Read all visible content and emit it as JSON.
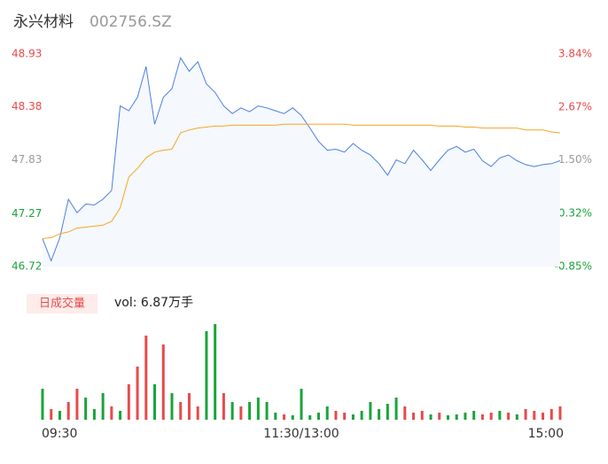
{
  "chart_data": [
    {
      "type": "line",
      "title": "永兴材料",
      "subtitle": "002756.SZ",
      "ylim": [
        46.72,
        48.93
      ],
      "yticks": [
        48.93,
        48.38,
        47.83,
        47.27,
        46.72
      ],
      "y2lim": [
        -0.85,
        3.84
      ],
      "y2ticks": [
        {
          "value": 3.84,
          "label": "3.84%"
        },
        {
          "value": 2.67,
          "label": "2.67%"
        },
        {
          "value": 1.5,
          "label": "1.50%"
        },
        {
          "value": 0.32,
          "label": "0.32%"
        },
        {
          "value": -0.85,
          "label": "-0.85%"
        }
      ],
      "series": [
        {
          "color": "#4a7fe0",
          "values": [
            47.01,
            46.78,
            47.02,
            47.42,
            47.28,
            47.37,
            47.36,
            47.42,
            47.51,
            48.39,
            48.34,
            48.48,
            48.8,
            48.2,
            48.48,
            48.57,
            48.89,
            48.75,
            48.85,
            48.62,
            48.53,
            48.39,
            48.31,
            48.37,
            48.33,
            48.39,
            48.37,
            48.34,
            48.31,
            48.37,
            48.29,
            48.16,
            48.02,
            47.93,
            47.94,
            47.91,
            48.0,
            47.93,
            47.88,
            47.79,
            47.67,
            47.83,
            47.79,
            47.93,
            47.83,
            47.72,
            47.83,
            47.93,
            47.97,
            47.91,
            47.94,
            47.82,
            47.76,
            47.85,
            47.88,
            47.82,
            47.78,
            47.76,
            47.78,
            47.79,
            47.82
          ]
        },
        {
          "color": "#f5a623",
          "values": [
            47.01,
            47.02,
            47.06,
            47.08,
            47.12,
            47.13,
            47.14,
            47.15,
            47.19,
            47.33,
            47.65,
            47.74,
            47.85,
            47.91,
            47.93,
            47.94,
            48.11,
            48.14,
            48.16,
            48.17,
            48.18,
            48.18,
            48.19,
            48.19,
            48.19,
            48.19,
            48.19,
            48.19,
            48.2,
            48.2,
            48.2,
            48.2,
            48.2,
            48.2,
            48.2,
            48.2,
            48.19,
            48.19,
            48.19,
            48.19,
            48.19,
            48.19,
            48.19,
            48.19,
            48.19,
            48.19,
            48.18,
            48.18,
            48.18,
            48.17,
            48.17,
            48.16,
            48.16,
            48.16,
            48.16,
            48.16,
            48.14,
            48.14,
            48.14,
            48.12,
            48.11
          ]
        }
      ]
    },
    {
      "type": "bar",
      "legend_label": "日成交量",
      "annotation": "vol: 6.87万手",
      "categories": [
        "09:30",
        null,
        null,
        null,
        null,
        null,
        null,
        null,
        null,
        null,
        null,
        null,
        null,
        null,
        null,
        null,
        null,
        null,
        null,
        null,
        null,
        null,
        null,
        null,
        null,
        null,
        null,
        null,
        null,
        null,
        "11:30/13:00",
        null,
        null,
        null,
        null,
        null,
        null,
        null,
        null,
        null,
        null,
        null,
        null,
        null,
        null,
        null,
        null,
        null,
        null,
        null,
        null,
        null,
        null,
        null,
        null,
        null,
        null,
        null,
        null,
        null,
        "15:00"
      ],
      "ylim": [
        0,
        108
      ],
      "values": [
        35,
        12,
        10,
        20,
        35,
        25,
        12,
        30,
        15,
        10,
        40,
        60,
        95,
        40,
        85,
        30,
        20,
        30,
        15,
        100,
        108,
        30,
        20,
        15,
        20,
        25,
        20,
        8,
        6,
        5,
        35,
        5,
        8,
        15,
        10,
        8,
        6,
        10,
        20,
        12,
        18,
        25,
        15,
        8,
        10,
        6,
        8,
        5,
        6,
        8,
        10,
        6,
        8,
        10,
        8,
        6,
        12,
        10,
        8,
        12,
        15
      ],
      "colors": [
        "#1aa33a",
        "#e84a4a",
        "#1aa33a",
        "#e84a4a",
        "#e84a4a",
        "#1aa33a",
        "#1aa33a",
        "#1aa33a",
        "#e84a4a",
        "#1aa33a",
        "#e84a4a",
        "#e84a4a",
        "#e84a4a",
        "#1aa33a",
        "#e84a4a",
        "#1aa33a",
        "#e84a4a",
        "#e84a4a",
        "#e84a4a",
        "#1aa33a",
        "#1aa33a",
        "#e84a4a",
        "#1aa33a",
        "#e84a4a",
        "#1aa33a",
        "#1aa33a",
        "#1aa33a",
        "#1aa33a",
        "#e84a4a",
        "#1aa33a",
        "#1aa33a",
        "#1aa33a",
        "#1aa33a",
        "#1aa33a",
        "#e84a4a",
        "#e84a4a",
        "#1aa33a",
        "#1aa33a",
        "#1aa33a",
        "#1aa33a",
        "#1aa33a",
        "#1aa33a",
        "#e84a4a",
        "#e84a4a",
        "#e84a4a",
        "#1aa33a",
        "#e84a4a",
        "#1aa33a",
        "#1aa33a",
        "#1aa33a",
        "#1aa33a",
        "#e84a4a",
        "#e84a4a",
        "#1aa33a",
        "#e84a4a",
        "#1aa33a",
        "#e84a4a",
        "#e84a4a",
        "#e84a4a",
        "#e84a4a",
        "#e84a4a"
      ]
    }
  ]
}
